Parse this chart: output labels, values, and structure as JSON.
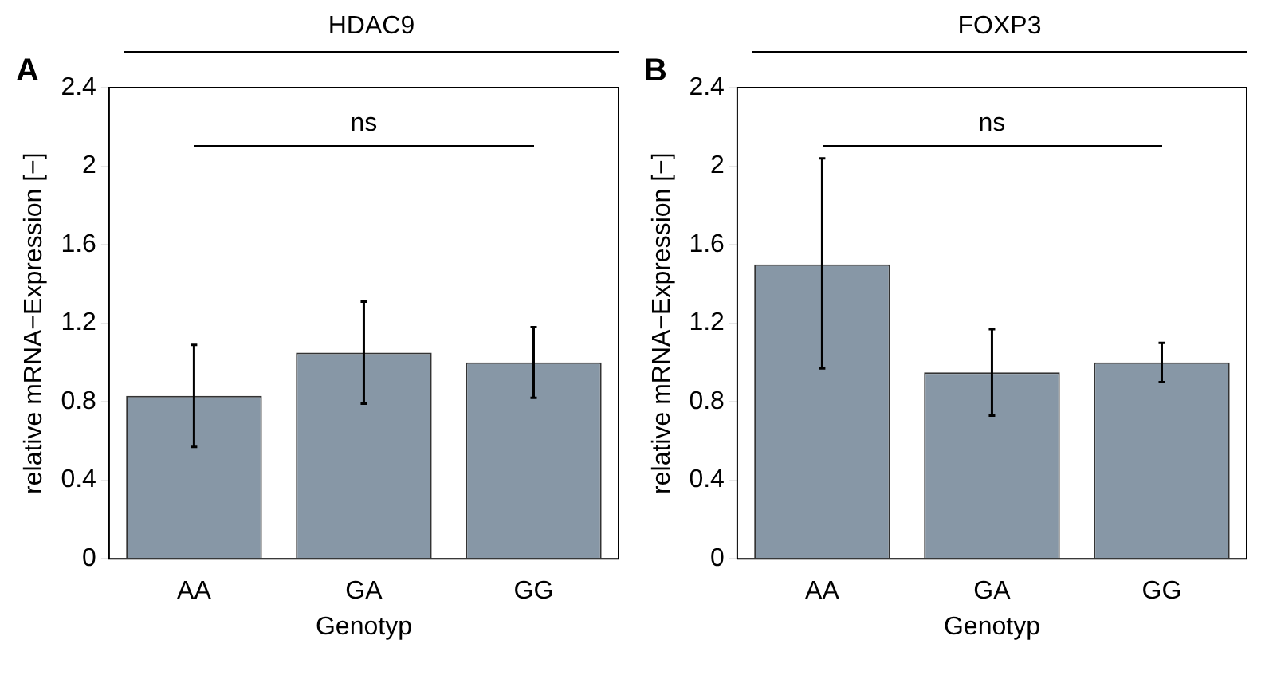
{
  "chart_data": [
    {
      "type": "bar",
      "title": "HDAC9",
      "categories": [
        "AA",
        "GA",
        "GG"
      ],
      "values": [
        0.83,
        1.05,
        1.0
      ],
      "errors": [
        [
          0.57,
          1.09
        ],
        [
          0.79,
          1.31
        ],
        [
          0.82,
          1.18
        ]
      ],
      "color": "#8797a6",
      "ylim": [
        0,
        2.4
      ],
      "yticks": [
        0,
        0.4,
        0.8,
        1.2,
        1.6,
        2,
        2.4
      ],
      "xlabel": "Genotyp",
      "ylabel": "relative mRNA−Expression [−]",
      "annotations": [
        "A",
        "ns"
      ],
      "grid": false
    },
    {
      "type": "bar",
      "title": "FOXP3",
      "categories": [
        "AA",
        "GA",
        "GG"
      ],
      "values": [
        1.5,
        0.95,
        1.0
      ],
      "errors": [
        [
          0.97,
          2.04
        ],
        [
          0.73,
          1.17
        ],
        [
          0.9,
          1.1
        ]
      ],
      "color": "#8797a6",
      "ylim": [
        0,
        2.4
      ],
      "yticks": [
        0,
        0.4,
        0.8,
        1.2,
        1.6,
        2,
        2.4
      ],
      "xlabel": "Genotyp",
      "ylabel": "relative mRNA−Expression [−]",
      "annotations": [
        "B",
        "ns"
      ],
      "grid": false
    }
  ]
}
